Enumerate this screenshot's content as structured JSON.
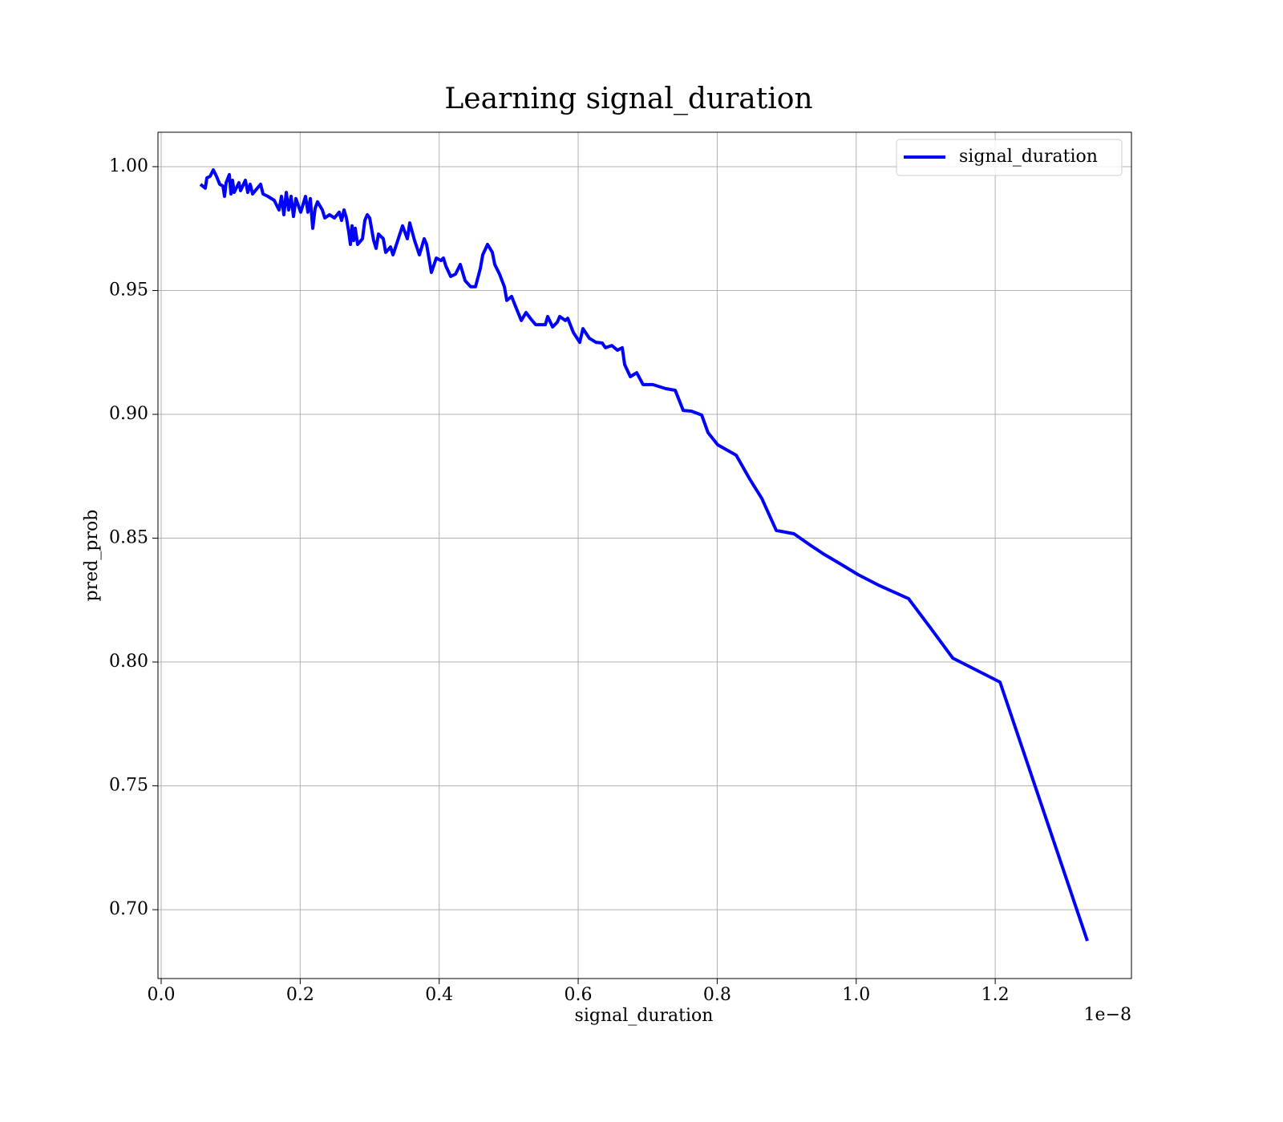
{
  "chart_data": {
    "type": "line",
    "title": "Learning signal_duration",
    "xlabel": "signal_duration",
    "ylabel": "pred_prob",
    "x_offset_label": "1e−8",
    "x": [
      0.0565,
      0.0635,
      0.0658,
      0.0704,
      0.075,
      0.0796,
      0.0842,
      0.0888,
      0.0912,
      0.0935,
      0.0981,
      0.1004,
      0.1027,
      0.105,
      0.1119,
      0.1142,
      0.1211,
      0.1246,
      0.1281,
      0.1315,
      0.1431,
      0.1465,
      0.1535,
      0.1627,
      0.1696,
      0.1731,
      0.1765,
      0.18,
      0.1835,
      0.1869,
      0.1904,
      0.1938,
      0.2008,
      0.2077,
      0.2111,
      0.2146,
      0.2181,
      0.2215,
      0.225,
      0.2319,
      0.2354,
      0.2423,
      0.2492,
      0.2561,
      0.2596,
      0.2631,
      0.2665,
      0.27,
      0.2723,
      0.2746,
      0.2769,
      0.2792,
      0.2827,
      0.2896,
      0.2931,
      0.2965,
      0.3,
      0.3058,
      0.3092,
      0.3127,
      0.3196,
      0.3231,
      0.33,
      0.3335,
      0.3404,
      0.3473,
      0.3542,
      0.3577,
      0.3646,
      0.3715,
      0.3784,
      0.3819,
      0.3888,
      0.3958,
      0.4027,
      0.4061,
      0.4096,
      0.4165,
      0.4234,
      0.4304,
      0.4373,
      0.4454,
      0.4523,
      0.4592,
      0.4627,
      0.4696,
      0.4765,
      0.48,
      0.4869,
      0.4938,
      0.4973,
      0.5042,
      0.5111,
      0.5181,
      0.525,
      0.5319,
      0.5388,
      0.5458,
      0.5527,
      0.5561,
      0.5631,
      0.57,
      0.5734,
      0.5815,
      0.585,
      0.5931,
      0.6023,
      0.6069,
      0.6161,
      0.6254,
      0.6346,
      0.6392,
      0.6484,
      0.6565,
      0.6634,
      0.6669,
      0.675,
      0.6842,
      0.6934,
      0.7073,
      0.7257,
      0.7396,
      0.7511,
      0.7627,
      0.7777,
      0.7869,
      0.8007,
      0.8273,
      0.8469,
      0.8642,
      0.885,
      0.9104,
      0.9334,
      0.9542,
      0.9796,
      1.0027,
      1.0315,
      1.0753,
      1.1065,
      1.1388,
      1.2069,
      1.3326
    ],
    "series": [
      {
        "name": "signal_duration",
        "color": "#0000ff",
        "values": [
          0.9929,
          0.9913,
          0.9955,
          0.9961,
          0.9987,
          0.9961,
          0.9929,
          0.9922,
          0.988,
          0.9935,
          0.9968,
          0.989,
          0.9945,
          0.9896,
          0.9935,
          0.9903,
          0.9945,
          0.9896,
          0.9929,
          0.989,
          0.9929,
          0.989,
          0.988,
          0.9864,
          0.9825,
          0.988,
          0.9806,
          0.9896,
          0.9825,
          0.988,
          0.9799,
          0.9871,
          0.9816,
          0.988,
          0.9816,
          0.9871,
          0.9751,
          0.9832,
          0.9858,
          0.9825,
          0.9793,
          0.9806,
          0.9793,
          0.9816,
          0.9783,
          0.9825,
          0.9793,
          0.9735,
          0.9686,
          0.9761,
          0.9702,
          0.9751,
          0.9686,
          0.9709,
          0.9783,
          0.9806,
          0.9793,
          0.9702,
          0.967,
          0.9728,
          0.9709,
          0.9654,
          0.9676,
          0.9644,
          0.9702,
          0.9761,
          0.9709,
          0.9773,
          0.9702,
          0.9644,
          0.9709,
          0.9686,
          0.9573,
          0.9631,
          0.9621,
          0.9631,
          0.9599,
          0.9557,
          0.9566,
          0.9605,
          0.954,
          0.9515,
          0.9515,
          0.9589,
          0.9644,
          0.9686,
          0.9654,
          0.9605,
          0.9566,
          0.9515,
          0.946,
          0.9476,
          0.9427,
          0.9379,
          0.9411,
          0.9385,
          0.9362,
          0.9362,
          0.9362,
          0.9395,
          0.9353,
          0.9372,
          0.9395,
          0.9379,
          0.9388,
          0.933,
          0.9291,
          0.9346,
          0.9307,
          0.9291,
          0.9288,
          0.9269,
          0.9278,
          0.9259,
          0.9269,
          0.9201,
          0.9152,
          0.9168,
          0.912,
          0.912,
          0.9104,
          0.9097,
          0.9016,
          0.9013,
          0.8997,
          0.8926,
          0.8877,
          0.8835,
          0.8738,
          0.866,
          0.8531,
          0.8518,
          0.8473,
          0.8434,
          0.8392,
          0.8353,
          0.8311,
          0.8256,
          0.8139,
          0.8016,
          0.7919,
          0.6874
        ]
      }
    ],
    "xlim": [
      -0.0046,
      1.396
    ],
    "xticks": [
      {
        "value": 0,
        "label": "0.0"
      },
      0.2,
      0.4,
      0.6,
      0.8,
      {
        "value": 1,
        "label": "1.0"
      },
      1.2
    ],
    "ylim": [
      0.6722,
      1.0139
    ],
    "yticks": [
      {
        "value": 0.7,
        "label": "0.70"
      },
      0.75,
      {
        "value": 0.8,
        "label": "0.80"
      },
      0.85,
      {
        "value": 0.9,
        "label": "0.90"
      },
      0.95,
      {
        "value": 1,
        "label": "1.00"
      }
    ],
    "grid": true,
    "legend": "upper right"
  }
}
